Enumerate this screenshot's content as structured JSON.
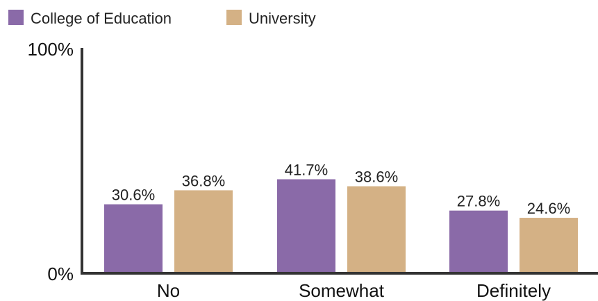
{
  "chart_data": {
    "type": "bar",
    "categories": [
      "No",
      "Somewhat",
      "Definitely"
    ],
    "series": [
      {
        "name": "College of Education",
        "color": "#8a6aa8",
        "values": [
          30.6,
          41.7,
          27.8
        ],
        "labels": [
          "30.6%",
          "41.7%",
          "27.8%"
        ]
      },
      {
        "name": "University",
        "color": "#d4b185",
        "values": [
          36.8,
          38.6,
          24.6
        ],
        "labels": [
          "36.8%",
          "38.6%",
          "24.6%"
        ]
      }
    ],
    "ylim": [
      0,
      100
    ],
    "yticks": [
      "0%",
      "100%"
    ],
    "legend_position": "top-left",
    "grid": false
  }
}
